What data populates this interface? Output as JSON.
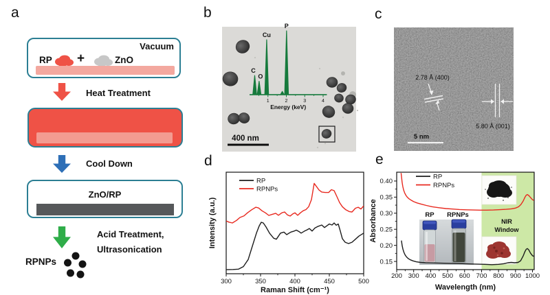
{
  "panel_labels": {
    "a": "a",
    "b": "b",
    "c": "c",
    "d": "d",
    "e": "e"
  },
  "panel_a": {
    "vacuum": "Vacuum",
    "rp": "RP",
    "plus": "+",
    "zno": "ZnO",
    "step1": "Heat Treatment",
    "step2": "Cool Down",
    "step3a": "Acid Treatment,",
    "step3b": "Ultrasonication",
    "box2_label": "ZnO/RP",
    "product": "RPNPs",
    "colors": {
      "outline": "#2b7e93",
      "red": "#ef5246",
      "pink": "#f3a89f",
      "blue": "#2e6fb7",
      "green": "#2fad49",
      "slab_gray": "#56585a",
      "zno_gray": "#c7c7c7",
      "dot": "#141414"
    }
  },
  "panel_b": {
    "scale_bar": "400 nm",
    "bg": "#dbdad7",
    "particles": [
      [
        30,
        29,
        10
      ],
      [
        12,
        76,
        11
      ],
      [
        17,
        134,
        8.5
      ],
      [
        32,
        133,
        8
      ],
      [
        160,
        81,
        8
      ],
      [
        174,
        89,
        7
      ],
      [
        170,
        104,
        6.5
      ],
      [
        187,
        106,
        7.5
      ],
      [
        155,
        124,
        9
      ],
      [
        183,
        119,
        8
      ],
      [
        152,
        156,
        7
      ]
    ],
    "faint_particles": [
      [
        190,
        99,
        5
      ],
      [
        176,
        68,
        3
      ]
    ],
    "selection_box": [
      141,
      145,
      23,
      23
    ]
  },
  "panel_c": {
    "scale_bar": "5 nm",
    "annotation_left": "2.78 Å (400)",
    "annotation_right": "5.80 Å (001)"
  },
  "chart_data": [
    {
      "type": "line",
      "panel": "d",
      "xlabel": "Raman Shift (cm⁻¹)",
      "ylabel": "Intensity (a.u.)",
      "xlim": [
        300,
        500
      ],
      "ylim": [
        0,
        1
      ],
      "xticks": [
        300,
        350,
        400,
        450,
        500
      ],
      "grid": false,
      "legend_position": "top-left",
      "series": [
        {
          "name": "RP",
          "color": "#1c1c1c",
          "points": [
            [
              300,
              0.04
            ],
            [
              310,
              0.042
            ],
            [
              318,
              0.045
            ],
            [
              325,
              0.07
            ],
            [
              332,
              0.14
            ],
            [
              338,
              0.27
            ],
            [
              344,
              0.4
            ],
            [
              348,
              0.47
            ],
            [
              351,
              0.507
            ],
            [
              354,
              0.5
            ],
            [
              358,
              0.46
            ],
            [
              363,
              0.4
            ],
            [
              369,
              0.35
            ],
            [
              373,
              0.34
            ],
            [
              379,
              0.4
            ],
            [
              384,
              0.41
            ],
            [
              388,
              0.385
            ],
            [
              394,
              0.41
            ],
            [
              399,
              0.42
            ],
            [
              402,
              0.43
            ],
            [
              406,
              0.415
            ],
            [
              409,
              0.4
            ],
            [
              414,
              0.42
            ],
            [
              417,
              0.43
            ],
            [
              421,
              0.445
            ],
            [
              425,
              0.42
            ],
            [
              429,
              0.45
            ],
            [
              433,
              0.465
            ],
            [
              439,
              0.48
            ],
            [
              443,
              0.455
            ],
            [
              447,
              0.475
            ],
            [
              450,
              0.49
            ],
            [
              454,
              0.48
            ],
            [
              457,
              0.5
            ],
            [
              460,
              0.478
            ],
            [
              463,
              0.49
            ],
            [
              466,
              0.42
            ],
            [
              469,
              0.345
            ],
            [
              473,
              0.31
            ],
            [
              478,
              0.297
            ],
            [
              483,
              0.31
            ],
            [
              488,
              0.34
            ],
            [
              493,
              0.37
            ],
            [
              500,
              0.4
            ]
          ]
        },
        {
          "name": "RPNPs",
          "color": "#e8291f",
          "points": [
            [
              300,
              0.52
            ],
            [
              304,
              0.508
            ],
            [
              309,
              0.5
            ],
            [
              315,
              0.525
            ],
            [
              320,
              0.554
            ],
            [
              326,
              0.57
            ],
            [
              331,
              0.6
            ],
            [
              337,
              0.63
            ],
            [
              343,
              0.655
            ],
            [
              347,
              0.648
            ],
            [
              352,
              0.62
            ],
            [
              357,
              0.6
            ],
            [
              362,
              0.574
            ],
            [
              367,
              0.585
            ],
            [
              372,
              0.595
            ],
            [
              376,
              0.576
            ],
            [
              381,
              0.6
            ],
            [
              385,
              0.608
            ],
            [
              389,
              0.58
            ],
            [
              393,
              0.568
            ],
            [
              397,
              0.59
            ],
            [
              400,
              0.6
            ],
            [
              404,
              0.575
            ],
            [
              408,
              0.6
            ],
            [
              412,
              0.62
            ],
            [
              416,
              0.632
            ],
            [
              420,
              0.66
            ],
            [
              424,
              0.73
            ],
            [
              428,
              0.89
            ],
            [
              431,
              0.862
            ],
            [
              435,
              0.825
            ],
            [
              439,
              0.805
            ],
            [
              444,
              0.8
            ],
            [
              449,
              0.8
            ],
            [
              453,
              0.828
            ],
            [
              457,
              0.818
            ],
            [
              461,
              0.76
            ],
            [
              465,
              0.7
            ],
            [
              469,
              0.66
            ],
            [
              474,
              0.63
            ],
            [
              479,
              0.612
            ],
            [
              483,
              0.608
            ],
            [
              488,
              0.645
            ],
            [
              492,
              0.655
            ],
            [
              496,
              0.638
            ],
            [
              500,
              0.668
            ]
          ]
        }
      ]
    },
    {
      "type": "line",
      "panel": "e",
      "xlabel": "Wavelength (nm)",
      "ylabel": "Absorbance",
      "xlim": [
        200,
        1010
      ],
      "ylim": [
        0.1246,
        0.4275
      ],
      "xticks": [
        200,
        300,
        400,
        500,
        600,
        700,
        800,
        900,
        1000
      ],
      "yticks": [
        0.15,
        0.2,
        0.25,
        0.3,
        0.35,
        0.4
      ],
      "grid": false,
      "legend_position": "top-left",
      "band": {
        "x0": 700,
        "x1": 1010,
        "color": "#cde8a6",
        "label": [
          "NIR",
          "Window"
        ],
        "label_color": "#4a4a40"
      },
      "insets": {
        "vial_labels": [
          "RP",
          "RPNPs"
        ],
        "powder_top": "black RP powder",
        "powder_bottom": "red RPNPs powder"
      },
      "series": [
        {
          "name": "RP",
          "color": "#1c1c1c",
          "points": [
            [
              228,
              0.215
            ],
            [
              232,
              0.2
            ],
            [
              237,
              0.188
            ],
            [
              243,
              0.178
            ],
            [
              250,
              0.17
            ],
            [
              258,
              0.164
            ],
            [
              268,
              0.159
            ],
            [
              280,
              0.155
            ],
            [
              295,
              0.152
            ],
            [
              315,
              0.149
            ],
            [
              340,
              0.147
            ],
            [
              370,
              0.146
            ],
            [
              400,
              0.1455
            ],
            [
              440,
              0.145
            ],
            [
              480,
              0.1445
            ],
            [
              520,
              0.144
            ],
            [
              560,
              0.1435
            ],
            [
              600,
              0.143
            ],
            [
              640,
              0.142
            ],
            [
              680,
              0.1415
            ],
            [
              720,
              0.141
            ],
            [
              760,
              0.14
            ],
            [
              800,
              0.141
            ],
            [
              830,
              0.143
            ],
            [
              855,
              0.146
            ],
            [
              875,
              0.147
            ],
            [
              895,
              0.146
            ],
            [
              915,
              0.147
            ],
            [
              930,
              0.152
            ],
            [
              945,
              0.167
            ],
            [
              955,
              0.18
            ],
            [
              963,
              0.188
            ],
            [
              970,
              0.19
            ],
            [
              978,
              0.186
            ],
            [
              988,
              0.176
            ],
            [
              1000,
              0.168
            ],
            [
              1008,
              0.166
            ]
          ]
        },
        {
          "name": "RPNPs",
          "color": "#e8291f",
          "points": [
            [
              226,
              0.425
            ],
            [
              229,
              0.41
            ],
            [
              232,
              0.396
            ],
            [
              236,
              0.383
            ],
            [
              241,
              0.372
            ],
            [
              247,
              0.363
            ],
            [
              254,
              0.356
            ],
            [
              262,
              0.35
            ],
            [
              272,
              0.345
            ],
            [
              284,
              0.341
            ],
            [
              300,
              0.336
            ],
            [
              320,
              0.332
            ],
            [
              345,
              0.328
            ],
            [
              375,
              0.324
            ],
            [
              410,
              0.32
            ],
            [
              450,
              0.317
            ],
            [
              490,
              0.3145
            ],
            [
              530,
              0.313
            ],
            [
              570,
              0.3115
            ],
            [
              610,
              0.3105
            ],
            [
              650,
              0.31
            ],
            [
              690,
              0.3095
            ],
            [
              730,
              0.3095
            ],
            [
              770,
              0.31
            ],
            [
              810,
              0.311
            ],
            [
              845,
              0.312
            ],
            [
              875,
              0.3135
            ],
            [
              900,
              0.316
            ],
            [
              918,
              0.32
            ],
            [
              932,
              0.327
            ],
            [
              945,
              0.338
            ],
            [
              955,
              0.349
            ],
            [
              963,
              0.356
            ],
            [
              970,
              0.358
            ],
            [
              978,
              0.355
            ],
            [
              988,
              0.349
            ],
            [
              1000,
              0.342
            ],
            [
              1008,
              0.34
            ]
          ]
        }
      ]
    },
    {
      "type": "line",
      "panel": "b-inset-EDS",
      "xlabel": "Energy (keV)",
      "xticks": [
        1,
        2,
        3,
        4
      ],
      "xlim": [
        0,
        4.2
      ],
      "color": "#167a3c",
      "peaks": [
        {
          "label": "C",
          "kev": 0.28,
          "height": 0.3
        },
        {
          "label": "O",
          "kev": 0.52,
          "height": 0.21
        },
        {
          "label": "Cu",
          "kev": 0.93,
          "height": 0.86
        },
        {
          "label": "",
          "kev": 1.78,
          "height": 0.05
        },
        {
          "label": "P",
          "kev": 2.01,
          "height": 1.0
        }
      ]
    }
  ]
}
